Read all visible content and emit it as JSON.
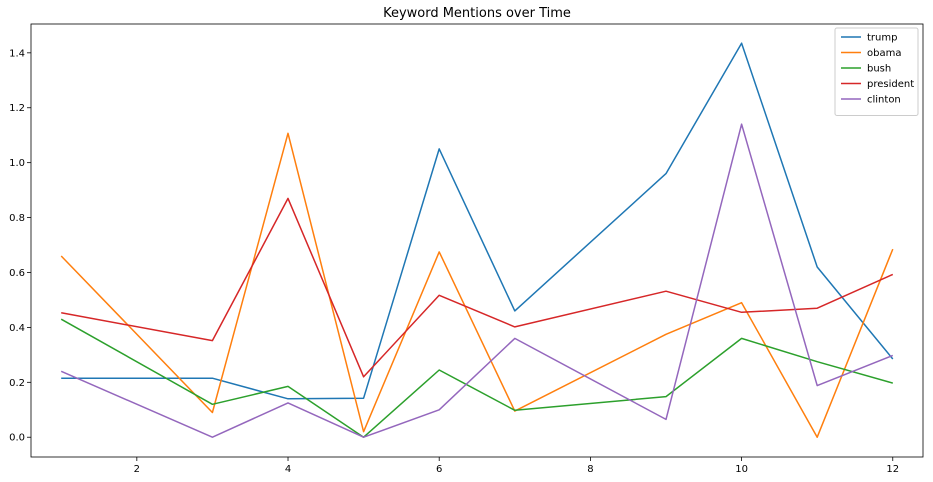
{
  "chart_data": {
    "type": "line",
    "title": "Keyword Mentions over Time",
    "xlabel": "",
    "ylabel": "",
    "xlim": [
      0.6,
      12.4
    ],
    "ylim": [
      -0.072,
      1.505
    ],
    "xticks": [
      2,
      4,
      6,
      8,
      10,
      12
    ],
    "yticks": [
      0.0,
      0.2,
      0.4,
      0.6,
      0.8,
      1.0,
      1.2,
      1.4
    ],
    "grid": false,
    "legend_position": "top-right",
    "x": [
      1,
      3,
      4,
      5,
      6,
      7,
      9,
      10,
      11,
      12
    ],
    "series": [
      {
        "name": "trump",
        "color": "#1f77b4",
        "values": [
          0.215,
          0.215,
          0.14,
          0.142,
          1.05,
          0.46,
          0.96,
          1.435,
          0.62,
          0.285
        ]
      },
      {
        "name": "obama",
        "color": "#ff7f0e",
        "values": [
          0.66,
          0.09,
          1.107,
          0.02,
          0.675,
          0.095,
          0.375,
          0.49,
          0.0,
          0.685
        ]
      },
      {
        "name": "bush",
        "color": "#2ca02c",
        "values": [
          0.43,
          0.12,
          0.185,
          0.0,
          0.245,
          0.098,
          0.148,
          0.36,
          0.275,
          0.197
        ]
      },
      {
        "name": "president",
        "color": "#d62728",
        "values": [
          0.453,
          0.352,
          0.87,
          0.22,
          0.517,
          0.402,
          0.532,
          0.455,
          0.47,
          0.593
        ]
      },
      {
        "name": "clinton",
        "color": "#9467bd",
        "values": [
          0.24,
          0.0,
          0.125,
          0.0,
          0.1,
          0.36,
          0.065,
          1.14,
          0.188,
          0.298
        ]
      }
    ]
  }
}
